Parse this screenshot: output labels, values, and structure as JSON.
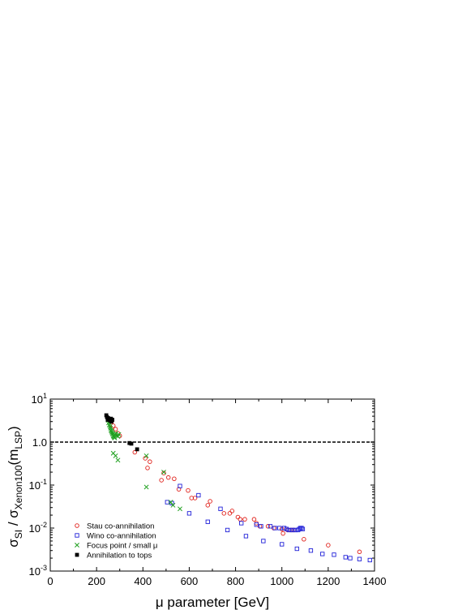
{
  "chart_data": {
    "type": "scatter",
    "title": "",
    "xlabel": "μ parameter [GeV]",
    "ylabel_parts": {
      "main": "σ",
      "sub1": "SI",
      "sep": " / σ",
      "sub2": "Xenon100",
      "paren_open": "(m",
      "sub3": "LSP",
      "paren_close": ")"
    },
    "xlim": [
      0,
      1400
    ],
    "ylim": [
      0.001,
      10
    ],
    "yscale": "log",
    "x_ticks": [
      0,
      200,
      400,
      600,
      800,
      1000,
      1200,
      1400
    ],
    "x_tick_labels": [
      "0",
      "200",
      "400",
      "600",
      "800",
      "1000",
      "1200",
      "1400"
    ],
    "y_ticks": [
      {
        "value": 10,
        "base": "10",
        "exp": "1"
      },
      {
        "value": 1,
        "base": "",
        "exp": "",
        "text": "1.0"
      },
      {
        "value": 0.1,
        "base": "10",
        "exp": "-1"
      },
      {
        "value": 0.01,
        "base": "10",
        "exp": "-2"
      },
      {
        "value": 0.001,
        "base": "10",
        "exp": "-3"
      }
    ],
    "reference_line": {
      "y": 1.0,
      "style": "dashed"
    },
    "legend_position": "lower-left",
    "series": [
      {
        "name": "Stau co-annihilation",
        "marker": "circle-open",
        "color": "#e0201a",
        "points": [
          [
            265,
            3.0
          ],
          [
            272,
            2.4
          ],
          [
            282,
            2.0
          ],
          [
            292,
            1.6
          ],
          [
            300,
            1.4
          ],
          [
            365,
            0.58
          ],
          [
            410,
            0.42
          ],
          [
            420,
            0.25
          ],
          [
            430,
            0.35
          ],
          [
            480,
            0.13
          ],
          [
            490,
            0.19
          ],
          [
            510,
            0.15
          ],
          [
            535,
            0.14
          ],
          [
            555,
            0.08
          ],
          [
            595,
            0.075
          ],
          [
            610,
            0.05
          ],
          [
            625,
            0.05
          ],
          [
            680,
            0.034
          ],
          [
            690,
            0.042
          ],
          [
            750,
            0.022
          ],
          [
            775,
            0.022
          ],
          [
            785,
            0.025
          ],
          [
            810,
            0.018
          ],
          [
            820,
            0.016
          ],
          [
            840,
            0.016
          ],
          [
            880,
            0.016
          ],
          [
            890,
            0.013
          ],
          [
            905,
            0.011
          ],
          [
            940,
            0.011
          ],
          [
            965,
            0.01
          ],
          [
            1000,
            0.0095
          ],
          [
            1005,
            0.0075
          ],
          [
            1025,
            0.009
          ],
          [
            1040,
            0.009
          ],
          [
            1050,
            0.009
          ],
          [
            1095,
            0.0055
          ],
          [
            1200,
            0.004
          ],
          [
            1335,
            0.0028
          ]
        ]
      },
      {
        "name": "Wino co-annihilation",
        "marker": "square-open",
        "color": "#2020d8",
        "points": [
          [
            505,
            0.04
          ],
          [
            525,
            0.038
          ],
          [
            560,
            0.095
          ],
          [
            600,
            0.022
          ],
          [
            640,
            0.058
          ],
          [
            680,
            0.014
          ],
          [
            735,
            0.028
          ],
          [
            765,
            0.009
          ],
          [
            825,
            0.013
          ],
          [
            845,
            0.0065
          ],
          [
            890,
            0.012
          ],
          [
            910,
            0.011
          ],
          [
            920,
            0.005
          ],
          [
            950,
            0.011
          ],
          [
            970,
            0.01
          ],
          [
            990,
            0.01
          ],
          [
            1000,
            0.0042
          ],
          [
            1010,
            0.01
          ],
          [
            1020,
            0.0095
          ],
          [
            1030,
            0.009
          ],
          [
            1040,
            0.009
          ],
          [
            1050,
            0.009
          ],
          [
            1060,
            0.009
          ],
          [
            1065,
            0.0033
          ],
          [
            1070,
            0.009
          ],
          [
            1075,
            0.0095
          ],
          [
            1080,
            0.01
          ],
          [
            1085,
            0.01
          ],
          [
            1090,
            0.0095
          ],
          [
            1125,
            0.003
          ],
          [
            1175,
            0.0025
          ],
          [
            1225,
            0.0024
          ],
          [
            1275,
            0.0021
          ],
          [
            1295,
            0.002
          ],
          [
            1335,
            0.0019
          ],
          [
            1380,
            0.0018
          ]
        ]
      },
      {
        "name": "Focus point / small μ",
        "marker": "cross",
        "color": "#20a020",
        "points": [
          [
            250,
            3.2
          ],
          [
            252,
            2.8
          ],
          [
            255,
            2.5
          ],
          [
            258,
            2.3
          ],
          [
            260,
            2.1
          ],
          [
            262,
            1.9
          ],
          [
            264,
            1.8
          ],
          [
            266,
            1.7
          ],
          [
            268,
            1.6
          ],
          [
            270,
            1.5
          ],
          [
            272,
            1.4
          ],
          [
            274,
            1.35
          ],
          [
            276,
            1.3
          ],
          [
            278,
            1.25
          ],
          [
            280,
            1.5
          ],
          [
            284,
            1.6
          ],
          [
            288,
            1.4
          ],
          [
            292,
            1.35
          ],
          [
            296,
            1.5
          ],
          [
            272,
            0.55
          ],
          [
            282,
            0.48
          ],
          [
            292,
            0.38
          ],
          [
            415,
            0.48
          ],
          [
            415,
            0.09
          ],
          [
            490,
            0.2
          ],
          [
            520,
            0.04
          ],
          [
            530,
            0.034
          ],
          [
            560,
            0.028
          ]
        ]
      },
      {
        "name": "Annihilation to tops",
        "marker": "square-filled",
        "color": "#000000",
        "points": [
          [
            242,
            4.2
          ],
          [
            245,
            3.8
          ],
          [
            248,
            3.3
          ],
          [
            250,
            3.6
          ],
          [
            258,
            3.2
          ],
          [
            262,
            3.5
          ],
          [
            264,
            3.0
          ],
          [
            268,
            3.3
          ],
          [
            342,
            0.95
          ],
          [
            350,
            0.92
          ],
          [
            375,
            0.68
          ]
        ]
      }
    ]
  }
}
